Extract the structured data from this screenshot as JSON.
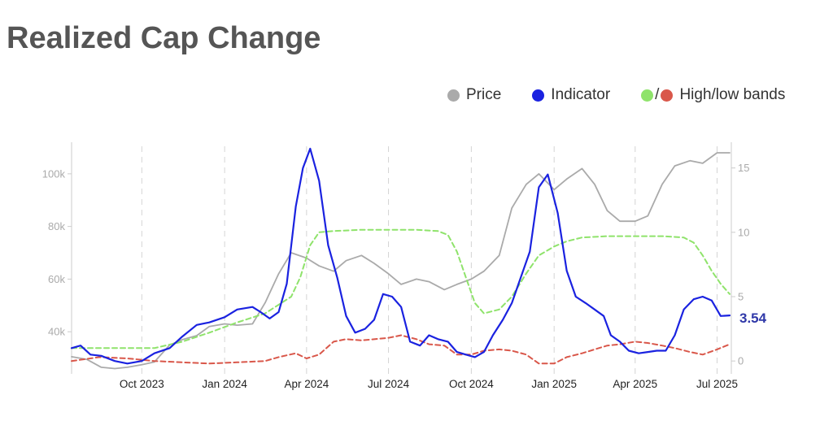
{
  "title": "Realized Cap Change",
  "legend": {
    "price": {
      "label": "Price",
      "color": "#aaaaaa"
    },
    "indicator": {
      "label": "Indicator",
      "color": "#1a22e0"
    },
    "bands": {
      "label": "High/low bands",
      "slash": "/",
      "high_color": "#8fe36b",
      "low_color": "#d9574a"
    }
  },
  "chart_data": {
    "type": "line",
    "x_range": [
      "2023-07-15",
      "2025-07-15"
    ],
    "x_ticks": [
      {
        "date": "2023-10-01",
        "label": "Oct 2023"
      },
      {
        "date": "2024-01-01",
        "label": "Jan 2024"
      },
      {
        "date": "2024-04-01",
        "label": "Apr 2024"
      },
      {
        "date": "2024-07-01",
        "label": "Jul 2024"
      },
      {
        "date": "2024-10-01",
        "label": "Oct 2024"
      },
      {
        "date": "2025-01-01",
        "label": "Jan 2025"
      },
      {
        "date": "2025-04-01",
        "label": "Apr 2025"
      },
      {
        "date": "2025-07-01",
        "label": "Jul 2025"
      }
    ],
    "y_left": {
      "ticks": [
        40000,
        60000,
        80000,
        100000
      ],
      "tick_labels": [
        "40k",
        "60k",
        "80k",
        "100k"
      ],
      "range": [
        24000,
        112000
      ]
    },
    "y_right": {
      "ticks": [
        0,
        5,
        10,
        15
      ],
      "tick_labels": [
        "0",
        "5",
        "10",
        "15"
      ],
      "range": [
        -1,
        17
      ]
    },
    "grid": {
      "vertical_dashed": true
    },
    "last_value_label": "3.54",
    "series": [
      {
        "name": "Price",
        "axis": "left",
        "color": "#aaaaaa",
        "x": [
          "2023-07-15",
          "2023-08-01",
          "2023-08-17",
          "2023-09-01",
          "2023-09-15",
          "2023-10-01",
          "2023-10-15",
          "2023-11-01",
          "2023-11-15",
          "2023-12-01",
          "2023-12-15",
          "2024-01-01",
          "2024-01-15",
          "2024-02-01",
          "2024-02-15",
          "2024-03-01",
          "2024-03-15",
          "2024-04-01",
          "2024-04-15",
          "2024-05-01",
          "2024-05-15",
          "2024-06-01",
          "2024-06-15",
          "2024-07-01",
          "2024-07-15",
          "2024-08-01",
          "2024-08-15",
          "2024-09-01",
          "2024-09-15",
          "2024-10-01",
          "2024-10-15",
          "2024-11-01",
          "2024-11-15",
          "2024-12-01",
          "2024-12-15",
          "2025-01-01",
          "2025-01-15",
          "2025-02-01",
          "2025-02-15",
          "2025-03-01",
          "2025-03-15",
          "2025-04-01",
          "2025-04-15",
          "2025-05-01",
          "2025-05-15",
          "2025-06-01",
          "2025-06-15",
          "2025-07-01",
          "2025-07-15"
        ],
        "values": [
          30500,
          29500,
          26500,
          26000,
          26500,
          27500,
          28500,
          35000,
          37000,
          38500,
          42000,
          43000,
          42500,
          43000,
          51000,
          62000,
          70000,
          68000,
          65000,
          63000,
          67000,
          69000,
          66000,
          62000,
          58000,
          60000,
          59000,
          56000,
          58000,
          60000,
          63000,
          69000,
          87000,
          96000,
          100000,
          94000,
          98000,
          102000,
          96000,
          86000,
          82000,
          82000,
          84000,
          96000,
          103000,
          105000,
          104000,
          108000,
          108000
        ]
      },
      {
        "name": "Indicator",
        "axis": "right",
        "color": "#1a22e0",
        "x": [
          "2023-07-15",
          "2023-07-25",
          "2023-08-05",
          "2023-08-17",
          "2023-09-01",
          "2023-09-15",
          "2023-10-01",
          "2023-10-15",
          "2023-11-01",
          "2023-11-15",
          "2023-12-01",
          "2023-12-15",
          "2024-01-01",
          "2024-01-15",
          "2024-02-01",
          "2024-02-10",
          "2024-02-20",
          "2024-03-01",
          "2024-03-10",
          "2024-03-20",
          "2024-03-28",
          "2024-04-05",
          "2024-04-15",
          "2024-04-25",
          "2024-05-05",
          "2024-05-15",
          "2024-05-25",
          "2024-06-05",
          "2024-06-15",
          "2024-06-25",
          "2024-07-05",
          "2024-07-15",
          "2024-07-25",
          "2024-08-05",
          "2024-08-15",
          "2024-08-25",
          "2024-09-05",
          "2024-09-15",
          "2024-09-25",
          "2024-10-05",
          "2024-10-15",
          "2024-10-25",
          "2024-11-05",
          "2024-11-15",
          "2024-11-25",
          "2024-12-05",
          "2024-12-15",
          "2024-12-25",
          "2025-01-05",
          "2025-01-15",
          "2025-01-25",
          "2025-02-05",
          "2025-02-15",
          "2025-02-25",
          "2025-03-05",
          "2025-03-15",
          "2025-03-25",
          "2025-04-05",
          "2025-04-15",
          "2025-04-25",
          "2025-05-05",
          "2025-05-15",
          "2025-05-25",
          "2025-06-05",
          "2025-06-15",
          "2025-06-25",
          "2025-07-05",
          "2025-07-15"
        ],
        "values": [
          1.0,
          1.2,
          0.5,
          0.4,
          0.0,
          -0.2,
          0.0,
          0.6,
          1.0,
          1.9,
          2.8,
          3.0,
          3.4,
          4.0,
          4.2,
          3.8,
          3.3,
          3.8,
          6.0,
          12.0,
          15.0,
          16.5,
          14.0,
          9.0,
          6.5,
          3.5,
          2.2,
          2.5,
          3.2,
          5.2,
          5.0,
          4.2,
          1.5,
          1.2,
          2.0,
          1.7,
          1.5,
          0.7,
          0.5,
          0.3,
          0.7,
          2.0,
          3.2,
          4.5,
          6.5,
          8.5,
          13.5,
          14.5,
          11.5,
          7.0,
          5.0,
          4.5,
          4.0,
          3.5,
          2.0,
          1.5,
          0.8,
          0.6,
          0.7,
          0.8,
          0.8,
          2.0,
          4.0,
          4.8,
          5.0,
          4.7,
          3.5,
          3.54
        ]
      },
      {
        "name": "High band",
        "axis": "right",
        "color": "#8fe36b",
        "x": [
          "2023-07-15",
          "2023-09-01",
          "2023-10-15",
          "2023-11-15",
          "2023-12-15",
          "2024-01-15",
          "2024-02-15",
          "2024-03-15",
          "2024-03-25",
          "2024-04-05",
          "2024-04-15",
          "2024-05-01",
          "2024-06-01",
          "2024-07-01",
          "2024-08-01",
          "2024-08-25",
          "2024-09-05",
          "2024-09-15",
          "2024-09-25",
          "2024-10-05",
          "2024-10-15",
          "2024-11-01",
          "2024-11-15",
          "2024-12-01",
          "2024-12-15",
          "2025-01-01",
          "2025-01-15",
          "2025-02-01",
          "2025-03-01",
          "2025-04-01",
          "2025-05-01",
          "2025-05-25",
          "2025-06-05",
          "2025-06-15",
          "2025-06-25",
          "2025-07-05",
          "2025-07-15"
        ],
        "values": [
          1.0,
          1.0,
          1.0,
          1.5,
          2.2,
          3.0,
          3.7,
          5.0,
          6.5,
          9.0,
          10.0,
          10.1,
          10.2,
          10.2,
          10.2,
          10.1,
          9.8,
          8.5,
          6.5,
          4.5,
          3.7,
          4.0,
          5.0,
          6.8,
          8.2,
          8.9,
          9.3,
          9.6,
          9.7,
          9.7,
          9.7,
          9.6,
          9.2,
          8.2,
          7.0,
          6.0,
          5.2
        ]
      },
      {
        "name": "Low band",
        "axis": "right",
        "color": "#d9574a",
        "x": [
          "2023-07-15",
          "2023-08-15",
          "2023-09-15",
          "2023-10-15",
          "2023-11-15",
          "2023-12-15",
          "2024-01-15",
          "2024-02-15",
          "2024-03-01",
          "2024-03-20",
          "2024-04-01",
          "2024-04-15",
          "2024-05-01",
          "2024-05-15",
          "2024-06-01",
          "2024-07-01",
          "2024-07-15",
          "2024-08-01",
          "2024-08-15",
          "2024-09-01",
          "2024-09-15",
          "2024-10-01",
          "2024-10-15",
          "2024-11-01",
          "2024-11-15",
          "2024-12-01",
          "2024-12-15",
          "2025-01-01",
          "2025-01-15",
          "2025-02-01",
          "2025-02-15",
          "2025-03-01",
          "2025-03-15",
          "2025-04-01",
          "2025-04-15",
          "2025-05-01",
          "2025-05-15",
          "2025-06-01",
          "2025-06-15",
          "2025-07-01",
          "2025-07-15"
        ],
        "values": [
          0.0,
          0.3,
          0.2,
          0.0,
          -0.1,
          -0.2,
          -0.1,
          0.0,
          0.3,
          0.6,
          0.2,
          0.5,
          1.5,
          1.7,
          1.6,
          1.8,
          2.0,
          1.7,
          1.3,
          1.2,
          0.5,
          0.5,
          0.8,
          0.9,
          0.8,
          0.5,
          -0.2,
          -0.2,
          0.3,
          0.6,
          0.9,
          1.2,
          1.3,
          1.5,
          1.4,
          1.2,
          1.0,
          0.7,
          0.5,
          0.9,
          1.3
        ]
      }
    ]
  }
}
